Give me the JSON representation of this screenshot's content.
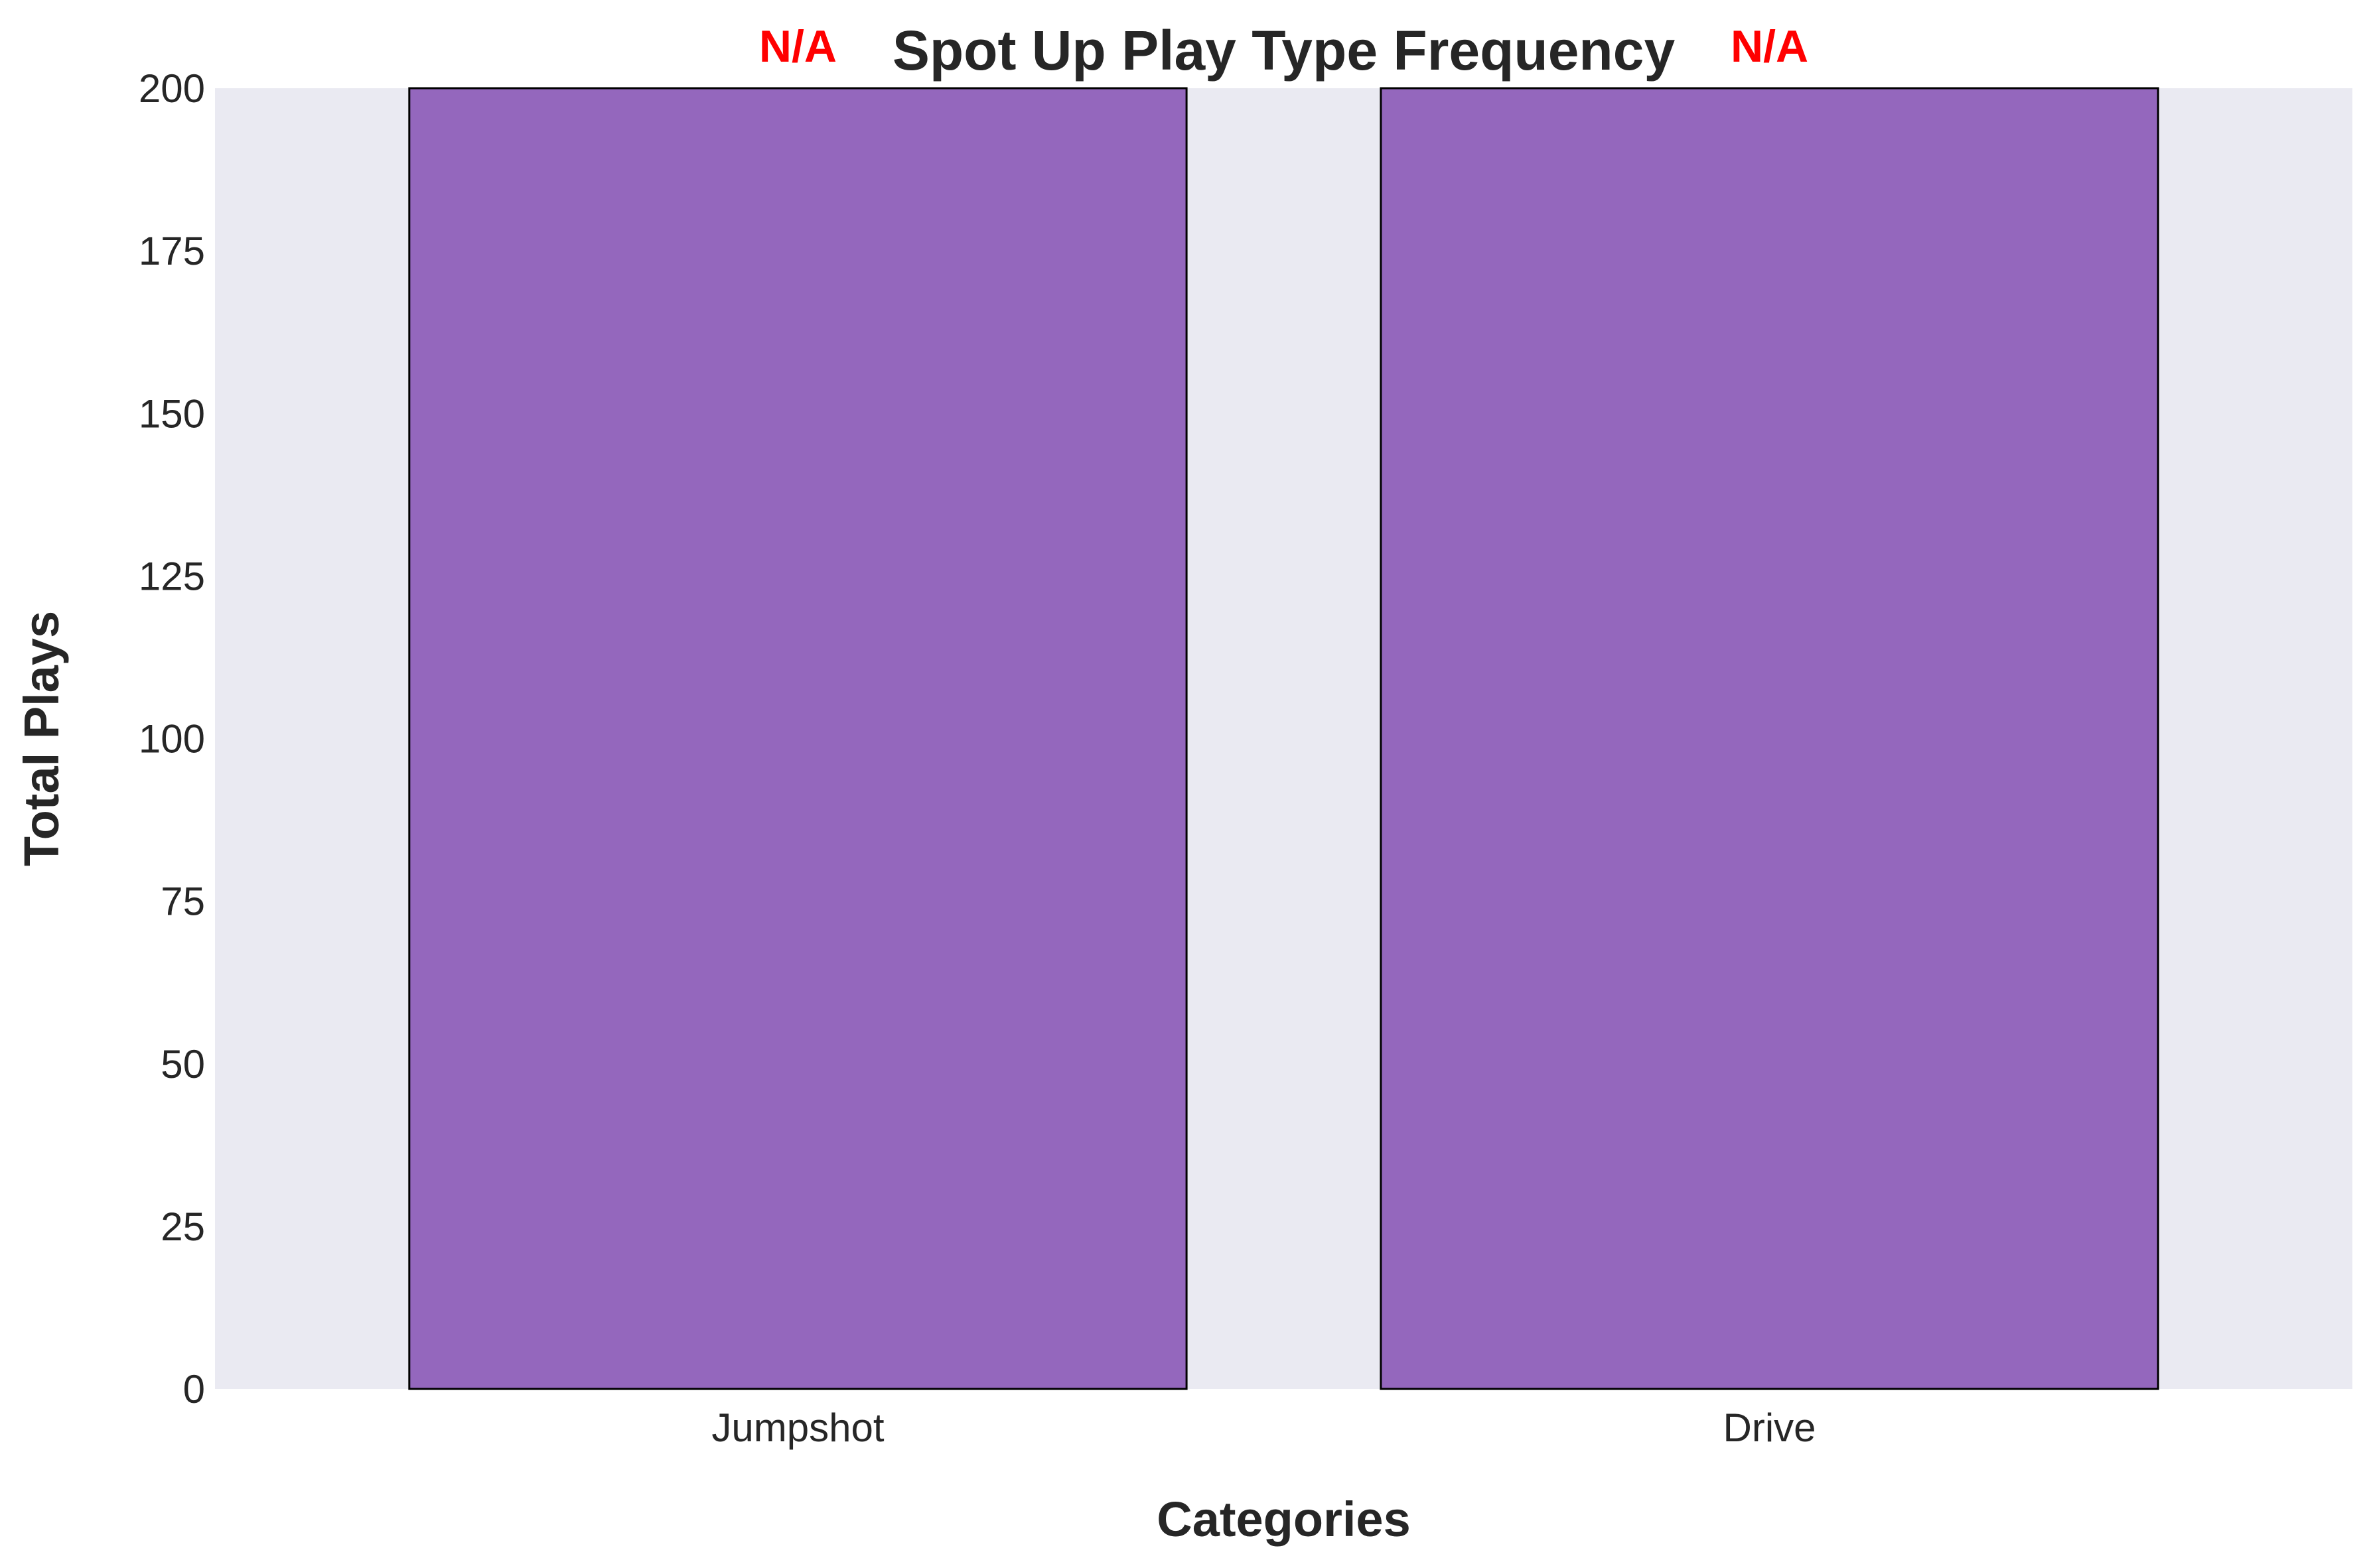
{
  "chart_data": {
    "type": "bar",
    "title": "Spot Up Play Type Frequency",
    "xlabel": "Categories",
    "ylabel": "Total Plays",
    "categories": [
      "Jumpshot",
      "Drive"
    ],
    "values": [
      200,
      200
    ],
    "data_labels": [
      "N/A",
      "N/A"
    ],
    "ylim": [
      0,
      200
    ],
    "yticks": [
      0,
      25,
      50,
      75,
      100,
      125,
      150,
      175,
      200
    ],
    "grid": false,
    "legend": "none",
    "colors": {
      "bar": "#9467bd",
      "bar_edge": "#000000",
      "plot_background": "#eaeaf2",
      "data_label": "#ff0000",
      "text": "#262626"
    }
  }
}
